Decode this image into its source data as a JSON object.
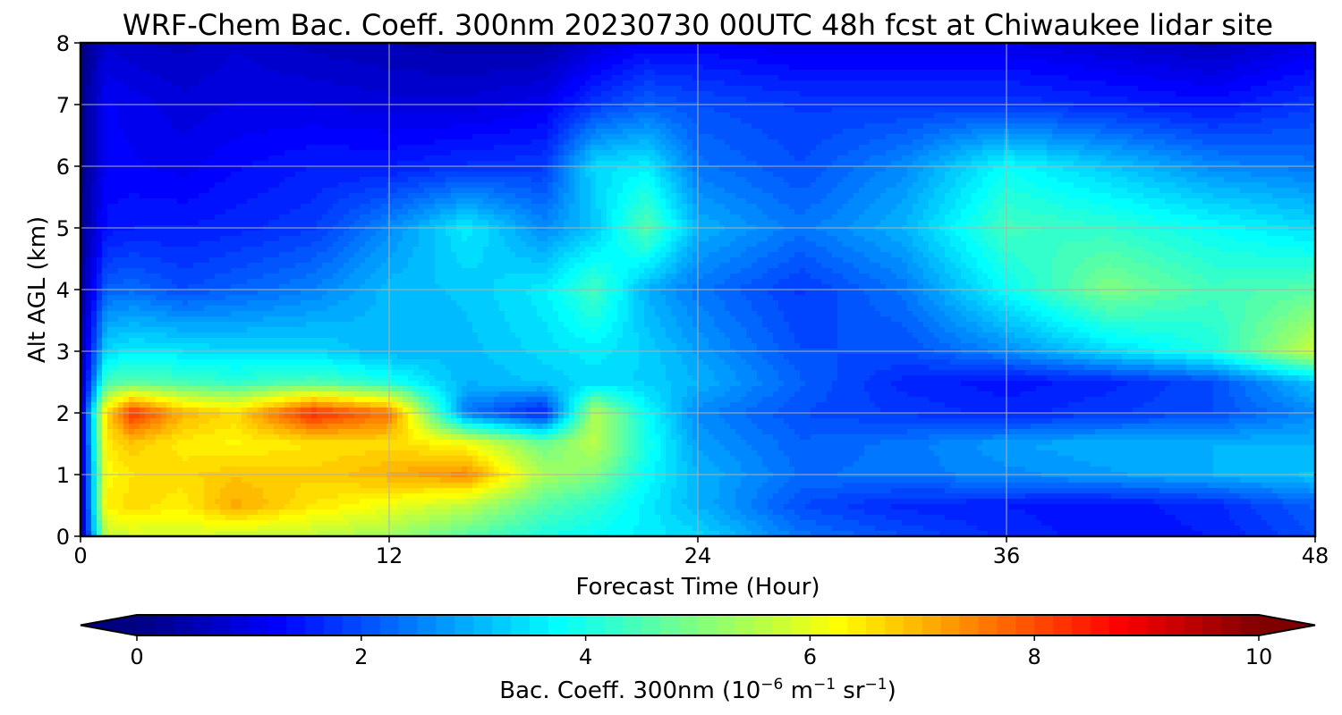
{
  "chart_data": {
    "type": "heatmap",
    "title": "WRF-Chem Bac. Coeff. 300nm  20230730 00UTC 48h fcst at Chiwaukee lidar site",
    "xlabel": "Forecast Time (Hour)",
    "ylabel": "Alt AGL (km)",
    "xlim": [
      0,
      48
    ],
    "ylim": [
      0,
      8
    ],
    "xticks": [
      "0",
      "12",
      "24",
      "36",
      "48"
    ],
    "yticks": [
      "0",
      "1",
      "2",
      "3",
      "4",
      "5",
      "6",
      "7",
      "8"
    ],
    "grid": true,
    "colormap": "jet",
    "colorbar": {
      "label_main": "Bac. Coeff. 300nm  (10",
      "label_exp1": "−6",
      "label_mid": " m",
      "label_exp2": "−1",
      "label_mid2": " sr",
      "label_exp3": "−1",
      "label_end": ")",
      "range": [
        0,
        10
      ],
      "ticks": [
        "0",
        "2",
        "4",
        "6",
        "8",
        "10"
      ],
      "extend": "both",
      "orientation": "horizontal",
      "levels": 60
    },
    "x_hours": [
      0,
      1,
      2,
      4,
      6,
      9,
      12,
      15,
      18,
      20,
      22,
      24,
      28,
      32,
      36,
      40,
      44,
      48
    ],
    "y_km": [
      0,
      0.5,
      1,
      1.5,
      2,
      2.5,
      3,
      4,
      5,
      6,
      7,
      8
    ],
    "values": [
      [
        0.3,
        5.6,
        5.8,
        5.8,
        5.7,
        5.6,
        5.3,
        4.6,
        4.0,
        3.8,
        3.6,
        3.4,
        2.4,
        2.0,
        1.6,
        1.4,
        1.5,
        2.0
      ],
      [
        0.3,
        6.4,
        6.6,
        6.4,
        7.1,
        6.5,
        6.1,
        5.6,
        4.6,
        4.2,
        3.6,
        3.0,
        2.0,
        1.6,
        1.5,
        1.4,
        1.6,
        2.2
      ],
      [
        0.4,
        6.2,
        6.5,
        6.6,
        6.8,
        6.7,
        7.0,
        7.4,
        5.4,
        5.0,
        3.8,
        3.0,
        2.3,
        2.4,
        2.6,
        2.8,
        3.0,
        3.2
      ],
      [
        0.5,
        6.4,
        6.8,
        6.4,
        6.3,
        6.5,
        6.6,
        6.2,
        4.8,
        5.6,
        4.0,
        2.8,
        2.2,
        2.4,
        2.8,
        3.0,
        3.0,
        3.0
      ],
      [
        0.5,
        6.6,
        8.3,
        7.0,
        6.6,
        8.4,
        7.6,
        2.4,
        1.5,
        5.5,
        3.8,
        2.6,
        2.0,
        1.8,
        1.6,
        1.8,
        2.0,
        2.6
      ],
      [
        0.4,
        4.4,
        4.6,
        4.4,
        4.2,
        4.5,
        4.0,
        3.0,
        3.2,
        3.4,
        3.3,
        3.0,
        2.2,
        1.6,
        1.4,
        1.6,
        2.0,
        3.2
      ],
      [
        0.3,
        3.4,
        3.6,
        3.5,
        3.4,
        3.4,
        3.0,
        3.1,
        3.4,
        3.6,
        3.3,
        2.8,
        2.0,
        2.0,
        2.6,
        3.4,
        4.0,
        5.8
      ],
      [
        0.2,
        2.2,
        2.3,
        2.0,
        2.2,
        2.5,
        3.1,
        3.2,
        3.6,
        4.4,
        3.0,
        2.4,
        1.8,
        2.4,
        3.8,
        5.0,
        4.4,
        4.6
      ],
      [
        0.1,
        1.4,
        1.5,
        1.5,
        1.6,
        1.8,
        2.6,
        3.6,
        2.6,
        3.2,
        4.6,
        3.0,
        2.4,
        3.0,
        4.4,
        4.2,
        3.8,
        3.4
      ],
      [
        0.0,
        1.2,
        1.2,
        1.1,
        1.3,
        1.5,
        1.5,
        1.7,
        1.8,
        3.4,
        3.6,
        2.4,
        2.0,
        2.6,
        3.8,
        3.2,
        2.6,
        2.4
      ],
      [
        0.0,
        1.2,
        1.1,
        0.9,
        1.0,
        1.0,
        0.9,
        0.9,
        1.1,
        1.8,
        2.2,
        2.0,
        1.8,
        1.8,
        1.8,
        1.6,
        1.4,
        1.8
      ],
      [
        0.0,
        0.8,
        0.7,
        0.6,
        0.8,
        0.6,
        0.5,
        0.4,
        0.4,
        0.8,
        1.2,
        1.2,
        1.0,
        1.0,
        1.0,
        0.8,
        0.6,
        1.0
      ]
    ]
  }
}
